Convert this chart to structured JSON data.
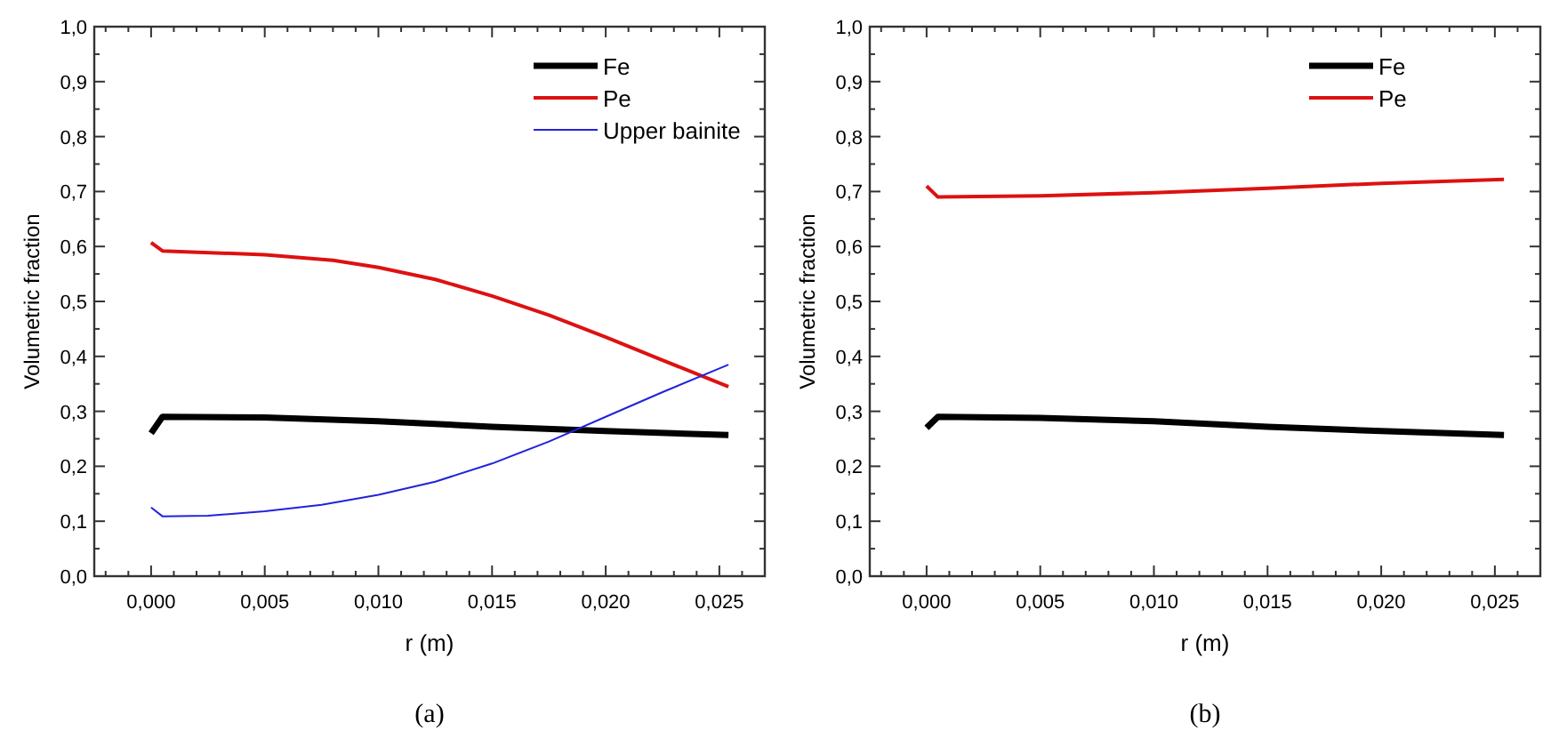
{
  "chart_data": [
    {
      "type": "line",
      "xlabel": "r (m)",
      "ylabel": "Volumetric fraction",
      "annotations": [
        "(a)"
      ],
      "legend": "top right",
      "grid": false,
      "line_style": "solid",
      "marker": "none",
      "xlim": [
        -0.0025,
        0.027
      ],
      "ylim": [
        0,
        1
      ],
      "xticks": [
        {
          "value": -0.002,
          "label": null
        },
        {
          "value": -0.001,
          "label": null
        },
        {
          "value": 0,
          "label": "0,000"
        },
        {
          "value": 0.001,
          "label": null
        },
        {
          "value": 0.002,
          "label": null
        },
        {
          "value": 0.003,
          "label": null
        },
        {
          "value": 0.004,
          "label": null
        },
        {
          "value": 0.005,
          "label": "0,005"
        },
        {
          "value": 0.006,
          "label": null
        },
        {
          "value": 0.007,
          "label": null
        },
        {
          "value": 0.008,
          "label": null
        },
        {
          "value": 0.009,
          "label": null
        },
        {
          "value": 0.01,
          "label": "0,010"
        },
        {
          "value": 0.011,
          "label": null
        },
        {
          "value": 0.012,
          "label": null
        },
        {
          "value": 0.013,
          "label": null
        },
        {
          "value": 0.014,
          "label": null
        },
        {
          "value": 0.015,
          "label": "0,015"
        },
        {
          "value": 0.016,
          "label": null
        },
        {
          "value": 0.017,
          "label": null
        },
        {
          "value": 0.018,
          "label": null
        },
        {
          "value": 0.019,
          "label": null
        },
        {
          "value": 0.02,
          "label": "0,020"
        },
        {
          "value": 0.021,
          "label": null
        },
        {
          "value": 0.022,
          "label": null
        },
        {
          "value": 0.023,
          "label": null
        },
        {
          "value": 0.024,
          "label": null
        },
        {
          "value": 0.025,
          "label": "0,025"
        },
        {
          "value": 0.026,
          "label": null
        }
      ],
      "yticks": [
        {
          "value": 0,
          "label": "0,0"
        },
        {
          "value": 0.05,
          "label": null
        },
        {
          "value": 0.1,
          "label": "0,1"
        },
        {
          "value": 0.15,
          "label": null
        },
        {
          "value": 0.2,
          "label": "0,2"
        },
        {
          "value": 0.25,
          "label": null
        },
        {
          "value": 0.3,
          "label": "0,3"
        },
        {
          "value": 0.35,
          "label": null
        },
        {
          "value": 0.4,
          "label": "0,4"
        },
        {
          "value": 0.45,
          "label": null
        },
        {
          "value": 0.5,
          "label": "0,5"
        },
        {
          "value": 0.55,
          "label": null
        },
        {
          "value": 0.6,
          "label": "0,6"
        },
        {
          "value": 0.65,
          "label": null
        },
        {
          "value": 0.7,
          "label": "0,7"
        },
        {
          "value": 0.75,
          "label": null
        },
        {
          "value": 0.8,
          "label": "0,8"
        },
        {
          "value": 0.85,
          "label": null
        },
        {
          "value": 0.9,
          "label": "0,9"
        },
        {
          "value": 0.95,
          "label": null
        },
        {
          "value": 1,
          "label": "1,0"
        }
      ],
      "series": [
        {
          "name": "Fe",
          "color": "#000000",
          "x": [
            0,
            0.0005,
            0.005,
            0.01,
            0.015,
            0.02,
            0.0254
          ],
          "values": [
            0.26,
            0.29,
            0.289,
            0.282,
            0.272,
            0.264,
            0.257
          ]
        },
        {
          "name": "Pe",
          "color": "#dd1111",
          "x": [
            0,
            0.0005,
            0.005,
            0.008,
            0.01,
            0.0125,
            0.015,
            0.0175,
            0.02,
            0.0225,
            0.0254
          ],
          "values": [
            0.607,
            0.592,
            0.585,
            0.575,
            0.562,
            0.54,
            0.51,
            0.475,
            0.435,
            0.393,
            0.345
          ]
        },
        {
          "name": "Upper bainite",
          "color": "#2222dd",
          "x": [
            0,
            0.0005,
            0.0025,
            0.005,
            0.0075,
            0.01,
            0.0125,
            0.015,
            0.0175,
            0.02,
            0.0225,
            0.0254
          ],
          "values": [
            0.125,
            0.109,
            0.11,
            0.118,
            0.13,
            0.148,
            0.172,
            0.205,
            0.245,
            0.29,
            0.335,
            0.385
          ]
        }
      ]
    },
    {
      "type": "line",
      "xlabel": "r (m)",
      "ylabel": "Volumetric fraction",
      "annotations": [
        "(b)"
      ],
      "legend": "top right",
      "grid": false,
      "line_style": "solid",
      "marker": "none",
      "xlim": [
        -0.0025,
        0.027
      ],
      "ylim": [
        0,
        1
      ],
      "xticks": [
        {
          "value": -0.002,
          "label": null
        },
        {
          "value": -0.001,
          "label": null
        },
        {
          "value": 0,
          "label": "0,000"
        },
        {
          "value": 0.001,
          "label": null
        },
        {
          "value": 0.002,
          "label": null
        },
        {
          "value": 0.003,
          "label": null
        },
        {
          "value": 0.004,
          "label": null
        },
        {
          "value": 0.005,
          "label": "0,005"
        },
        {
          "value": 0.006,
          "label": null
        },
        {
          "value": 0.007,
          "label": null
        },
        {
          "value": 0.008,
          "label": null
        },
        {
          "value": 0.009,
          "label": null
        },
        {
          "value": 0.01,
          "label": "0,010"
        },
        {
          "value": 0.011,
          "label": null
        },
        {
          "value": 0.012,
          "label": null
        },
        {
          "value": 0.013,
          "label": null
        },
        {
          "value": 0.014,
          "label": null
        },
        {
          "value": 0.015,
          "label": "0,015"
        },
        {
          "value": 0.016,
          "label": null
        },
        {
          "value": 0.017,
          "label": null
        },
        {
          "value": 0.018,
          "label": null
        },
        {
          "value": 0.019,
          "label": null
        },
        {
          "value": 0.02,
          "label": "0,020"
        },
        {
          "value": 0.021,
          "label": null
        },
        {
          "value": 0.022,
          "label": null
        },
        {
          "value": 0.023,
          "label": null
        },
        {
          "value": 0.024,
          "label": null
        },
        {
          "value": 0.025,
          "label": "0,025"
        },
        {
          "value": 0.026,
          "label": null
        }
      ],
      "yticks": [
        {
          "value": 0,
          "label": "0,0"
        },
        {
          "value": 0.05,
          "label": null
        },
        {
          "value": 0.1,
          "label": "0,1"
        },
        {
          "value": 0.15,
          "label": null
        },
        {
          "value": 0.2,
          "label": "0,2"
        },
        {
          "value": 0.25,
          "label": null
        },
        {
          "value": 0.3,
          "label": "0,3"
        },
        {
          "value": 0.35,
          "label": null
        },
        {
          "value": 0.4,
          "label": "0,4"
        },
        {
          "value": 0.45,
          "label": null
        },
        {
          "value": 0.5,
          "label": "0,5"
        },
        {
          "value": 0.55,
          "label": null
        },
        {
          "value": 0.6,
          "label": "0,6"
        },
        {
          "value": 0.65,
          "label": null
        },
        {
          "value": 0.7,
          "label": "0,7"
        },
        {
          "value": 0.75,
          "label": null
        },
        {
          "value": 0.8,
          "label": "0,8"
        },
        {
          "value": 0.85,
          "label": null
        },
        {
          "value": 0.9,
          "label": "0,9"
        },
        {
          "value": 0.95,
          "label": null
        },
        {
          "value": 1,
          "label": "1,0"
        }
      ],
      "series": [
        {
          "name": "Fe",
          "color": "#000000",
          "x": [
            0,
            0.0005,
            0.005,
            0.01,
            0.015,
            0.02,
            0.0254
          ],
          "values": [
            0.27,
            0.29,
            0.288,
            0.282,
            0.272,
            0.264,
            0.257
          ]
        },
        {
          "name": "Pe",
          "color": "#dd1111",
          "x": [
            0,
            0.0005,
            0.005,
            0.01,
            0.015,
            0.02,
            0.0254
          ],
          "values": [
            0.71,
            0.69,
            0.692,
            0.698,
            0.706,
            0.715,
            0.722
          ]
        }
      ]
    }
  ]
}
